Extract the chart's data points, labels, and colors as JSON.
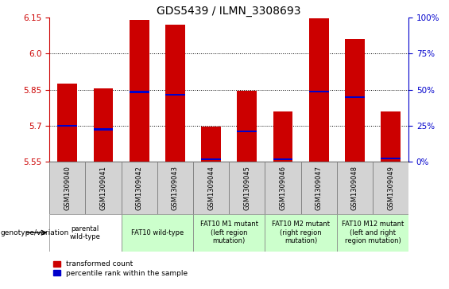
{
  "title": "GDS5439 / ILMN_3308693",
  "samples": [
    "GSM1309040",
    "GSM1309041",
    "GSM1309042",
    "GSM1309043",
    "GSM1309044",
    "GSM1309045",
    "GSM1309046",
    "GSM1309047",
    "GSM1309048",
    "GSM1309049"
  ],
  "bar_values": [
    5.875,
    5.855,
    6.14,
    6.12,
    5.695,
    5.845,
    5.76,
    6.145,
    6.06,
    5.76
  ],
  "blue_values": [
    5.7,
    5.685,
    5.84,
    5.83,
    5.56,
    5.678,
    5.56,
    5.843,
    5.82,
    5.563
  ],
  "ylim_left": [
    5.55,
    6.15
  ],
  "ylim_right": [
    0,
    100
  ],
  "yticks_left": [
    5.55,
    5.7,
    5.85,
    6.0,
    6.15
  ],
  "yticks_right": [
    0,
    25,
    50,
    75,
    100
  ],
  "bar_color": "#cc0000",
  "blue_color": "#0000cc",
  "bar_bottom": 5.55,
  "groups": [
    {
      "label": "parental\nwild-type",
      "span": [
        0,
        2
      ],
      "color": "#ffffff"
    },
    {
      "label": "FAT10 wild-type",
      "span": [
        2,
        4
      ],
      "color": "#ccffcc"
    },
    {
      "label": "FAT10 M1 mutant\n(left region\nmutation)",
      "span": [
        4,
        6
      ],
      "color": "#ccffcc"
    },
    {
      "label": "FAT10 M2 mutant\n(right region\nmutation)",
      "span": [
        6,
        8
      ],
      "color": "#ccffcc"
    },
    {
      "label": "FAT10 M12 mutant\n(left and right\nregion mutation)",
      "span": [
        8,
        10
      ],
      "color": "#ccffcc"
    }
  ],
  "legend_label_red": "transformed count",
  "legend_label_blue": "percentile rank within the sample",
  "left_yaxis_color": "#cc0000",
  "right_yaxis_color": "#0000cc",
  "genotype_label": "genotype/variation",
  "bar_width": 0.55,
  "sample_bg": "#d3d3d3",
  "title_fontsize": 10,
  "tick_fontsize": 7.5,
  "sample_fontsize": 6,
  "group_fontsize": 6,
  "legend_fontsize": 6.5
}
